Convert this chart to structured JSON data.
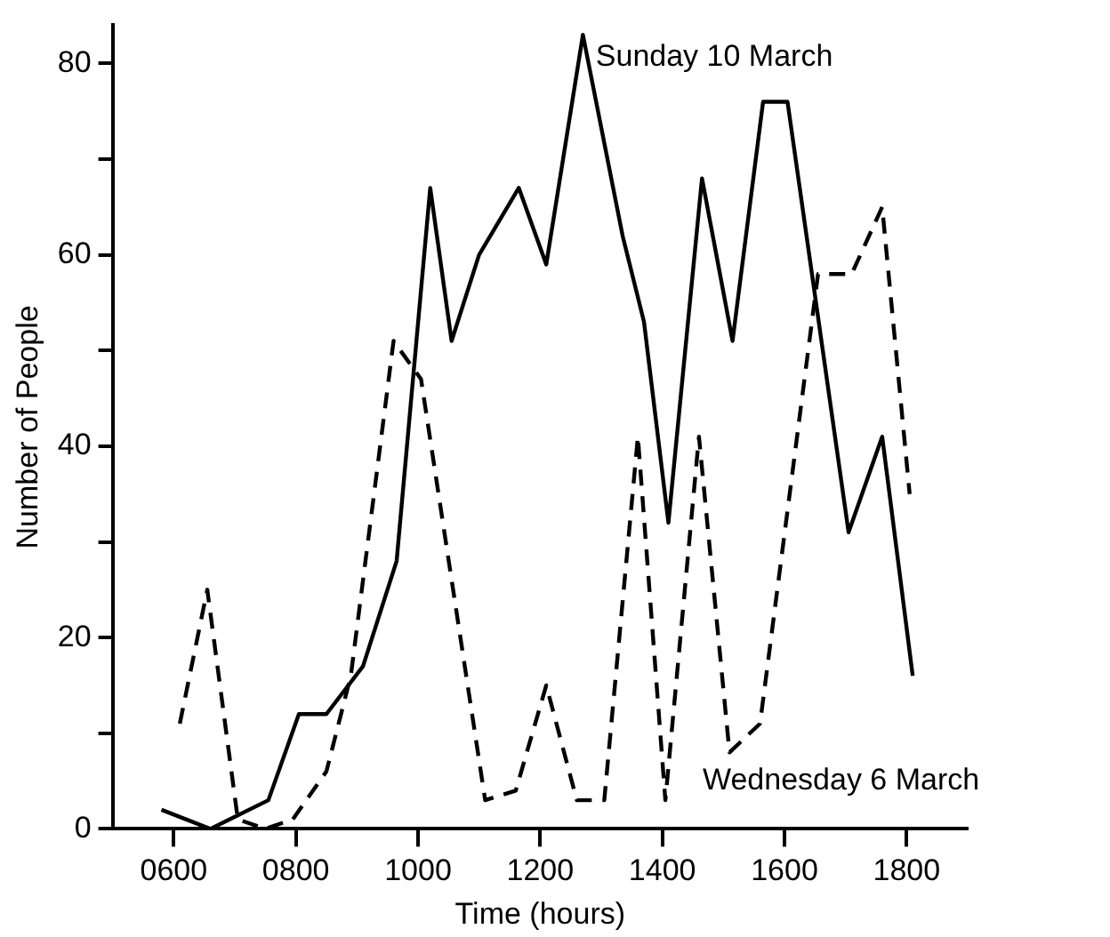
{
  "chart_data": {
    "type": "line",
    "xlabel": "Time (hours)",
    "ylabel": "Number of People",
    "xlim": [
      500,
      1900
    ],
    "xticks": [
      {
        "value": 600,
        "label": "0600"
      },
      {
        "value": 800,
        "label": "0800"
      },
      1000,
      1200,
      1400,
      1600,
      1800
    ],
    "ylim": [
      0,
      84
    ],
    "yticks": [
      0,
      {
        "value": 10,
        "label": null
      },
      20,
      {
        "value": 30,
        "label": null
      },
      40,
      {
        "value": 50,
        "label": null
      },
      60,
      {
        "value": 70,
        "label": null
      },
      80
    ],
    "grid": false,
    "legend": false,
    "marker": "none",
    "series": [
      {
        "name": "Sunday 10 March",
        "color": "#000000",
        "line_style": "solid",
        "x": [
          580,
          660,
          755,
          805,
          850,
          910,
          965,
          1020,
          1055,
          1100,
          1165,
          1210,
          1270,
          1335,
          1370,
          1410,
          1465,
          1515,
          1565,
          1605,
          1705,
          1760,
          1810
        ],
        "values": [
          2,
          0,
          3,
          12,
          12,
          17,
          28,
          67,
          51,
          60,
          67,
          59,
          83,
          62,
          53,
          32,
          68,
          51,
          76,
          76,
          31,
          41,
          16
        ]
      },
      {
        "name": "Wednesday 6 March",
        "color": "#000000",
        "line_style": "dashed",
        "x": [
          610,
          655,
          705,
          750,
          795,
          850,
          890,
          960,
          1005,
          1110,
          1160,
          1210,
          1260,
          1305,
          1360,
          1405,
          1460,
          1510,
          1560,
          1655,
          1710,
          1760,
          1805
        ],
        "values": [
          11,
          25,
          1,
          0,
          1,
          6,
          16,
          51,
          47,
          3,
          4,
          15,
          3,
          3,
          41,
          3,
          41,
          8,
          11,
          58,
          58,
          65,
          35
        ]
      }
    ]
  }
}
